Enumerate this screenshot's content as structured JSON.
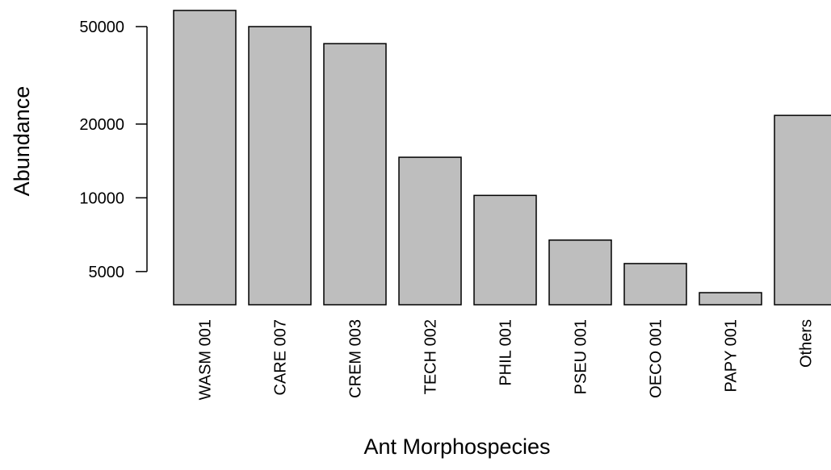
{
  "chart_data": {
    "type": "bar",
    "x_label": "Ant Morphospecies",
    "y_label": "Abundance",
    "categories": [
      "WASM 001",
      "CARE 007",
      "CREM 003",
      "TECH 002",
      "PHIL 001",
      "PSEU 001",
      "OECO 001",
      "PAPY 001",
      "Others"
    ],
    "values": [
      58200,
      50000,
      42600,
      14640,
      10230,
      6720,
      5390,
      4100,
      21700
    ],
    "color": "#bebebe",
    "ylim": [
      3660,
      64200
    ],
    "yticks": [
      5000,
      10000,
      20000,
      50000
    ],
    "log_y": true
  }
}
